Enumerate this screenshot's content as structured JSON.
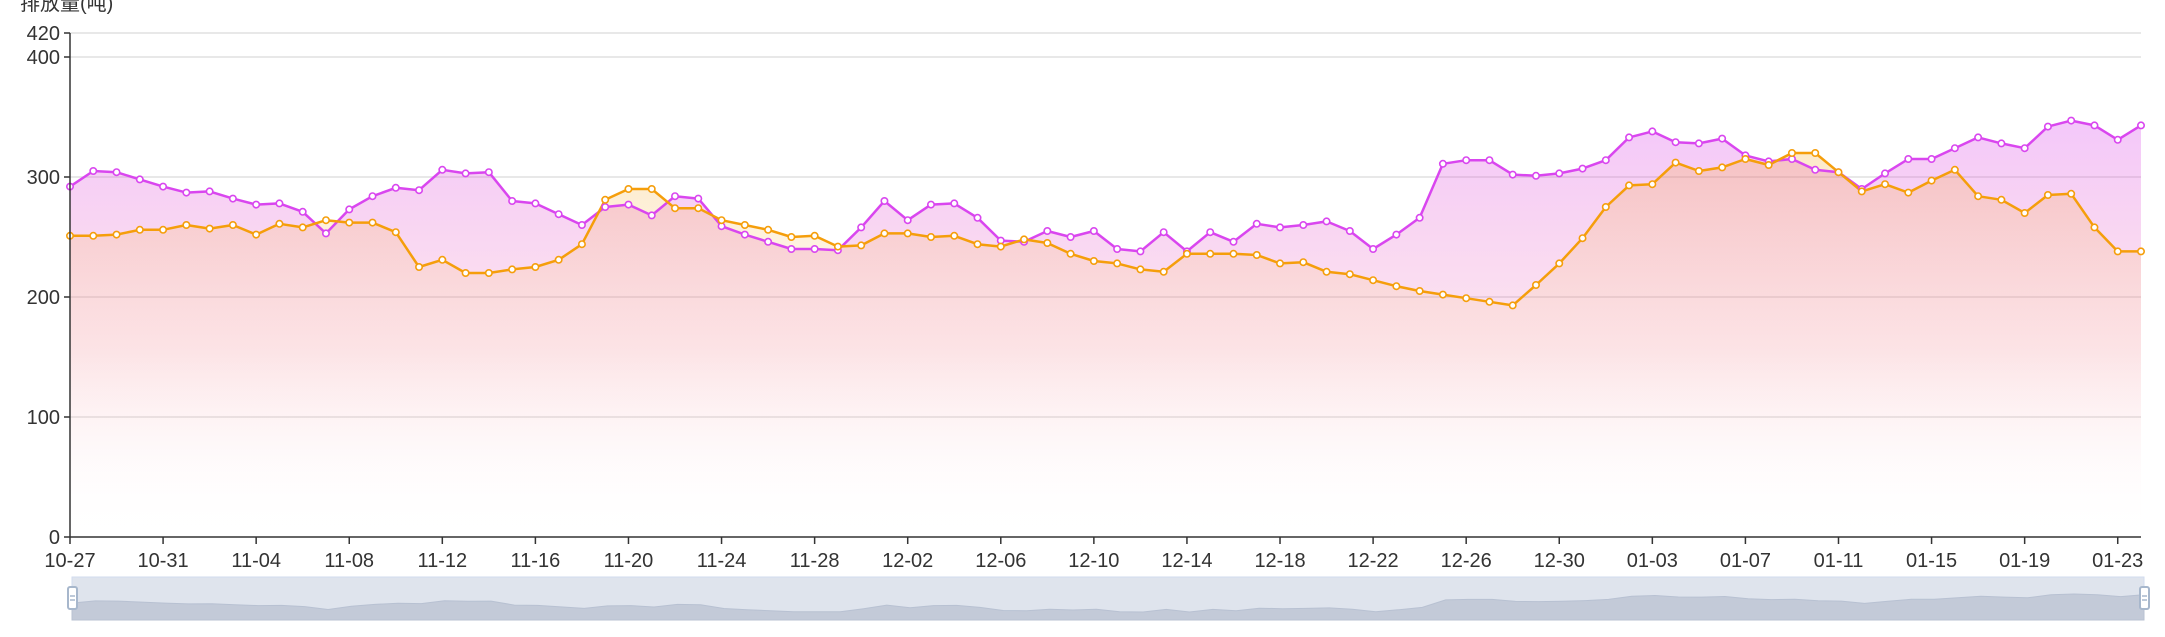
{
  "chart_data": {
    "type": "area",
    "ylabel": "排放量(吨)",
    "ylim": [
      0,
      420
    ],
    "yticks": [
      0,
      100,
      200,
      300,
      400,
      420
    ],
    "grid": true,
    "legend": "none",
    "x": [
      "10-27",
      "10-28",
      "10-29",
      "10-30",
      "10-31",
      "11-01",
      "11-02",
      "11-03",
      "11-04",
      "11-05",
      "11-06",
      "11-07",
      "11-08",
      "11-09",
      "11-10",
      "11-11",
      "11-12",
      "11-13",
      "11-14",
      "11-15",
      "11-16",
      "11-17",
      "11-18",
      "11-19",
      "11-20",
      "11-21",
      "11-22",
      "11-23",
      "11-24",
      "11-25",
      "11-26",
      "11-27",
      "11-28",
      "11-29",
      "11-30",
      "12-01",
      "12-02",
      "12-03",
      "12-04",
      "12-05",
      "12-06",
      "12-07",
      "12-08",
      "12-09",
      "12-10",
      "12-11",
      "12-12",
      "12-13",
      "12-14",
      "12-15",
      "12-16",
      "12-17",
      "12-18",
      "12-19",
      "12-20",
      "12-21",
      "12-22",
      "12-23",
      "12-24",
      "12-25",
      "12-26",
      "12-27",
      "12-28",
      "12-29",
      "12-30",
      "12-31",
      "01-01",
      "01-02",
      "01-03",
      "01-04",
      "01-05",
      "01-06",
      "01-07",
      "01-08",
      "01-09",
      "01-10",
      "01-11",
      "01-12",
      "01-13",
      "01-14",
      "01-15",
      "01-16",
      "01-17",
      "01-18",
      "01-19",
      "01-20",
      "01-21",
      "01-22",
      "01-23",
      "01-24"
    ],
    "xtick_labels": [
      "10-27",
      "10-31",
      "11-04",
      "11-08",
      "11-12",
      "11-16",
      "11-20",
      "11-24",
      "11-28",
      "12-02",
      "12-06",
      "12-10",
      "12-14",
      "12-18",
      "12-22",
      "12-26",
      "12-30",
      "01-03",
      "01-07",
      "01-11",
      "01-15",
      "01-19",
      "01-23"
    ],
    "series": [
      {
        "color": "#d946ef",
        "values": [
          292,
          305,
          304,
          298,
          292,
          287,
          288,
          282,
          277,
          278,
          271,
          253,
          273,
          284,
          291,
          289,
          306,
          303,
          304,
          280,
          278,
          269,
          260,
          275,
          277,
          268,
          284,
          282,
          259,
          252,
          246,
          240,
          240,
          239,
          258,
          280,
          264,
          277,
          278,
          266,
          247,
          246,
          255,
          250,
          255,
          240,
          238,
          254,
          238,
          254,
          246,
          261,
          258,
          260,
          263,
          255,
          240,
          252,
          266,
          311,
          314,
          314,
          302,
          301,
          303,
          307,
          314,
          333,
          338,
          329,
          328,
          332,
          318,
          313,
          315,
          306,
          304,
          290,
          303,
          315,
          315,
          324,
          333,
          328,
          324,
          342,
          347,
          343,
          331,
          343
        ]
      },
      {
        "color": "#f59e0b",
        "values": [
          251,
          251,
          252,
          256,
          256,
          260,
          257,
          260,
          252,
          261,
          258,
          264,
          262,
          262,
          254,
          225,
          231,
          220,
          220,
          223,
          225,
          231,
          244,
          281,
          290,
          290,
          274,
          274,
          264,
          260,
          256,
          250,
          251,
          242,
          243,
          253,
          253,
          250,
          251,
          244,
          242,
          248,
          245,
          236,
          230,
          228,
          223,
          221,
          236,
          236,
          236,
          235,
          228,
          229,
          221,
          219,
          214,
          209,
          205,
          202,
          199,
          196,
          193,
          210,
          228,
          249,
          275,
          293,
          294,
          312,
          305,
          308,
          315,
          310,
          320,
          320,
          304,
          288,
          294,
          287,
          297,
          306,
          284,
          281,
          270,
          285,
          286,
          258,
          238,
          238
        ]
      }
    ]
  }
}
